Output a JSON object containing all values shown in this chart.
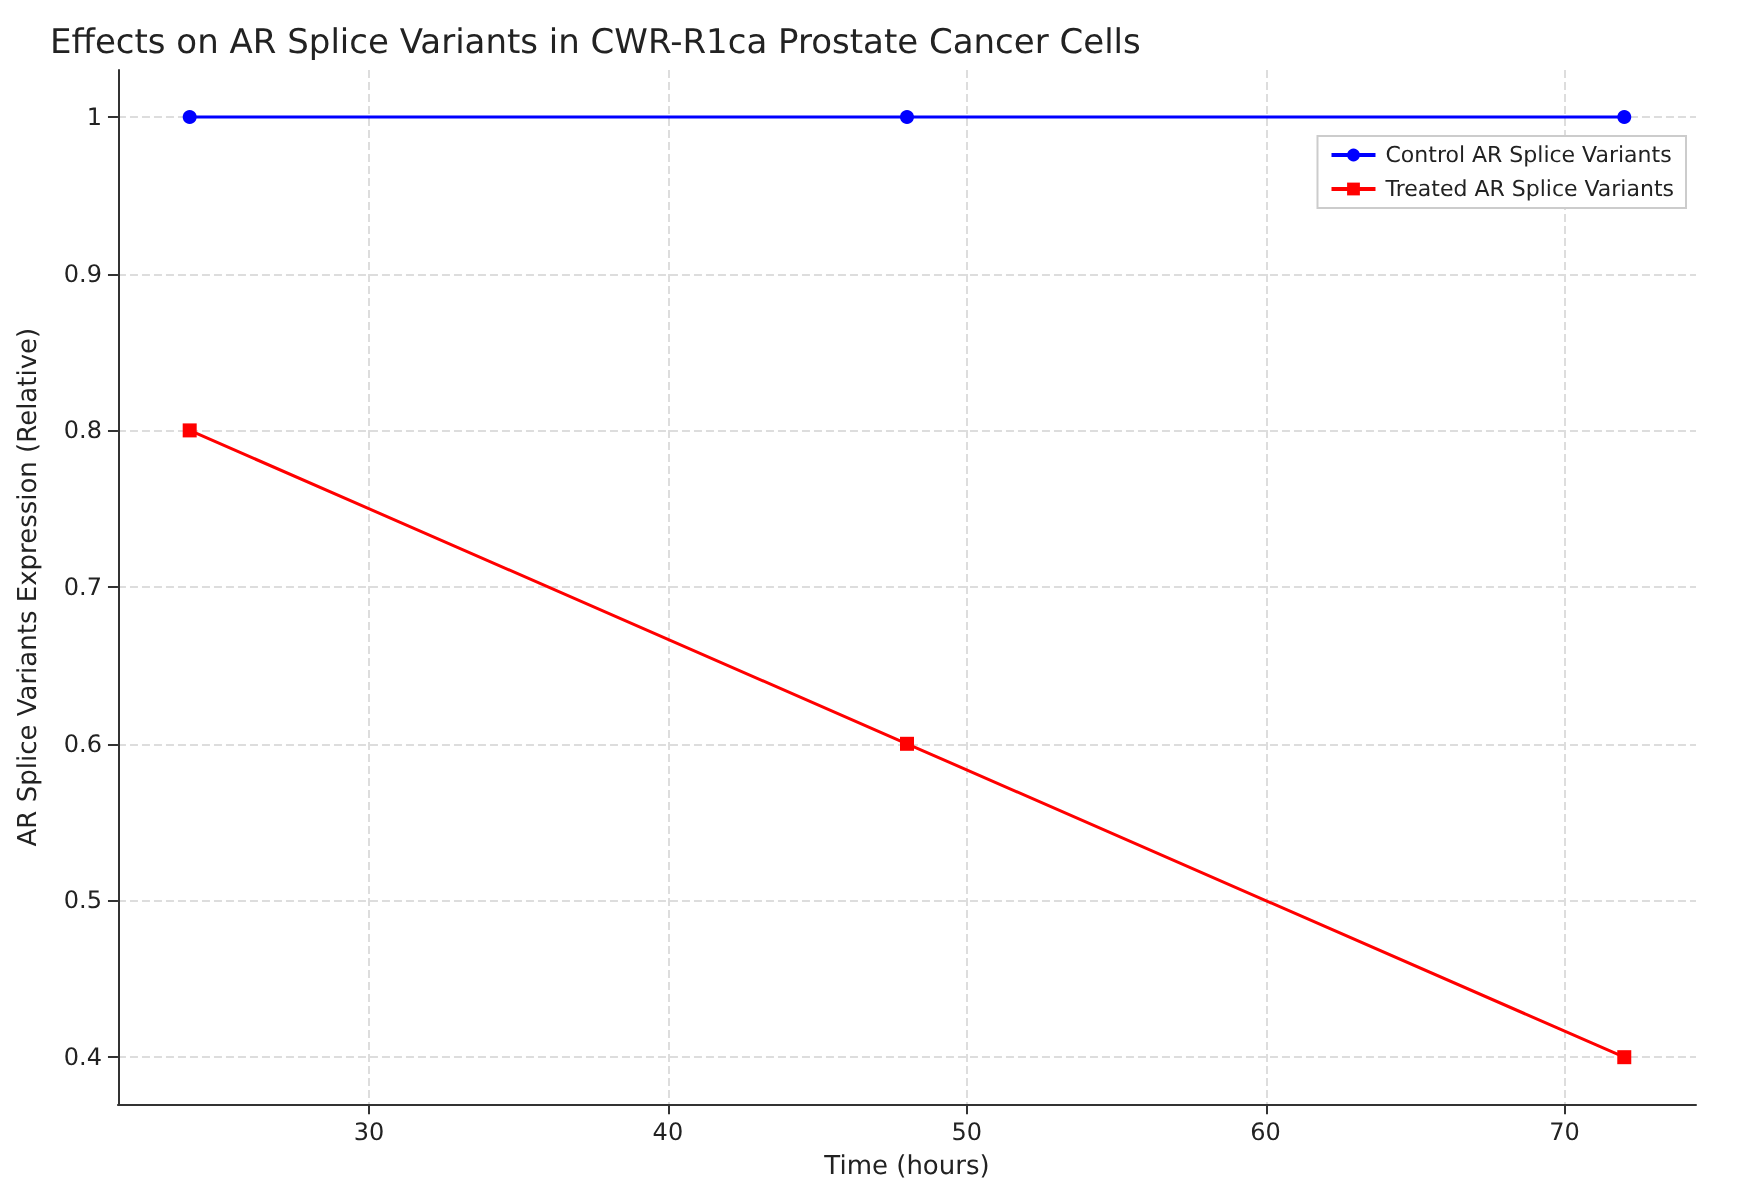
{
  "chart_data": {
    "type": "line",
    "title": "Effects on AR Splice Variants in CWR-R1ca Prostate Cancer Cells",
    "xlabel": "Time (hours)",
    "ylabel": "AR Splice Variants Expression (Relative)",
    "x": [
      24,
      48,
      72
    ],
    "series": [
      {
        "name": "Control AR Splice Variants",
        "color": "#0000ff",
        "values": [
          1.0,
          1.0,
          1.0
        ],
        "marker": "circle"
      },
      {
        "name": "Treated AR Splice Variants",
        "color": "#ff0000",
        "values": [
          0.8,
          0.6,
          0.4
        ],
        "marker": "square"
      }
    ],
    "xlim": [
      21.6,
      74.4
    ],
    "xticks": [
      30,
      40,
      50,
      60,
      70
    ],
    "ylim": [
      0.37,
      1.03
    ],
    "yticks": [
      0.4,
      0.5,
      0.6,
      0.7,
      0.8,
      0.9,
      1.0
    ],
    "grid": true,
    "legend": "top right",
    "line_style": "solid"
  }
}
